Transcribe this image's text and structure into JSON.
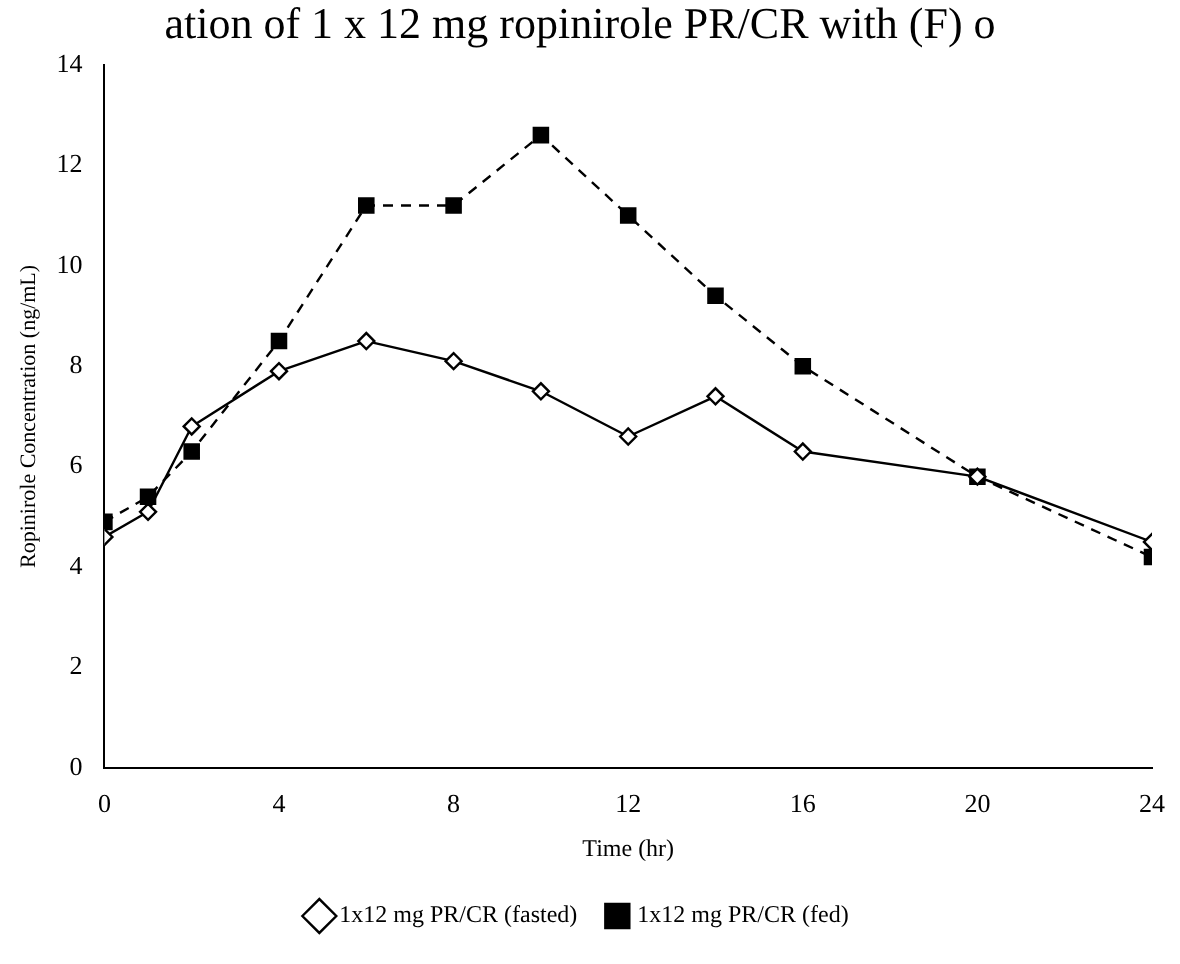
{
  "chart_data": {
    "type": "line",
    "title": "ation of 1 x 12 mg ropinirole PR/CR with (F) o",
    "xlabel": "Time (hr)",
    "ylabel": "Ropinirole Concentration (ng/mL)",
    "x": [
      0,
      1,
      2,
      4,
      6,
      8,
      10,
      12,
      14,
      16,
      20,
      24
    ],
    "series": [
      {
        "name": "1x12 mg PR/CR (fasted)",
        "color": "#000000",
        "marker": "diamond",
        "line_style": "solid",
        "values": [
          4.6,
          5.1,
          6.8,
          7.9,
          8.5,
          8.1,
          7.5,
          6.6,
          7.4,
          6.3,
          5.8,
          4.5
        ]
      },
      {
        "name": "1x12 mg PR/CR (fed)",
        "color": "#000000",
        "marker": "square",
        "line_style": "dashed",
        "values": [
          4.9,
          5.4,
          6.3,
          8.5,
          11.2,
          11.2,
          12.6,
          11.0,
          9.4,
          8.0,
          5.8,
          4.2
        ]
      }
    ],
    "xlim": [
      0,
      24
    ],
    "xticks": [
      0,
      4,
      8,
      12,
      16,
      20,
      24
    ],
    "ylim": [
      0,
      14
    ],
    "yticks": [
      0,
      2,
      4,
      6,
      8,
      10,
      12,
      14
    ],
    "grid": false,
    "legend": "bottom"
  }
}
